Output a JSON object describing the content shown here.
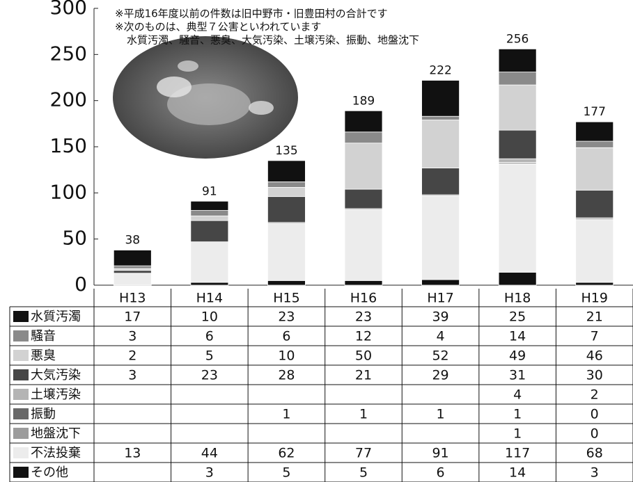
{
  "chart_data": {
    "type": "bar",
    "stacked": true,
    "categories": [
      "H13",
      "H14",
      "H15",
      "H16",
      "H17",
      "H18",
      "H19"
    ],
    "series": [
      {
        "name": "水質汚濁",
        "color": "#111111",
        "values": [
          17,
          10,
          23,
          23,
          39,
          25,
          21
        ]
      },
      {
        "name": "騒音",
        "color": "#8a8a8a",
        "values": [
          3,
          6,
          6,
          12,
          4,
          14,
          7
        ]
      },
      {
        "name": "悪臭",
        "color": "#d2d2d2",
        "values": [
          2,
          5,
          10,
          50,
          52,
          49,
          46
        ]
      },
      {
        "name": "大気汚染",
        "color": "#464646",
        "values": [
          3,
          23,
          28,
          21,
          29,
          31,
          30
        ]
      },
      {
        "name": "土壌汚染",
        "color": "#b4b4b4",
        "values": [
          null,
          null,
          null,
          null,
          null,
          4,
          2
        ]
      },
      {
        "name": "振動",
        "color": "#686868",
        "values": [
          null,
          null,
          1,
          1,
          1,
          1,
          0
        ]
      },
      {
        "name": "地盤沈下",
        "color": "#9c9c9c",
        "values": [
          null,
          null,
          null,
          null,
          null,
          1,
          0
        ]
      },
      {
        "name": "不法投棄",
        "color": "#ececec",
        "values": [
          13,
          44,
          62,
          77,
          91,
          117,
          68
        ]
      },
      {
        "name": "その他",
        "color": "#111111",
        "values": [
          null,
          3,
          5,
          5,
          6,
          14,
          3
        ]
      }
    ],
    "totals": [
      38,
      91,
      135,
      189,
      222,
      256,
      177
    ],
    "annotations": [
      "※平成16年度以前の件数は旧中野市・旧豊田村の合計です",
      "※次のものは、典型７公害といわれています",
      "水質汚濁、騒音、悪臭、大気汚染、土壌汚染、振動、地盤沈下"
    ],
    "ylim": [
      0,
      300
    ],
    "yticks": [
      0,
      50,
      100,
      150,
      200,
      250,
      300
    ]
  }
}
